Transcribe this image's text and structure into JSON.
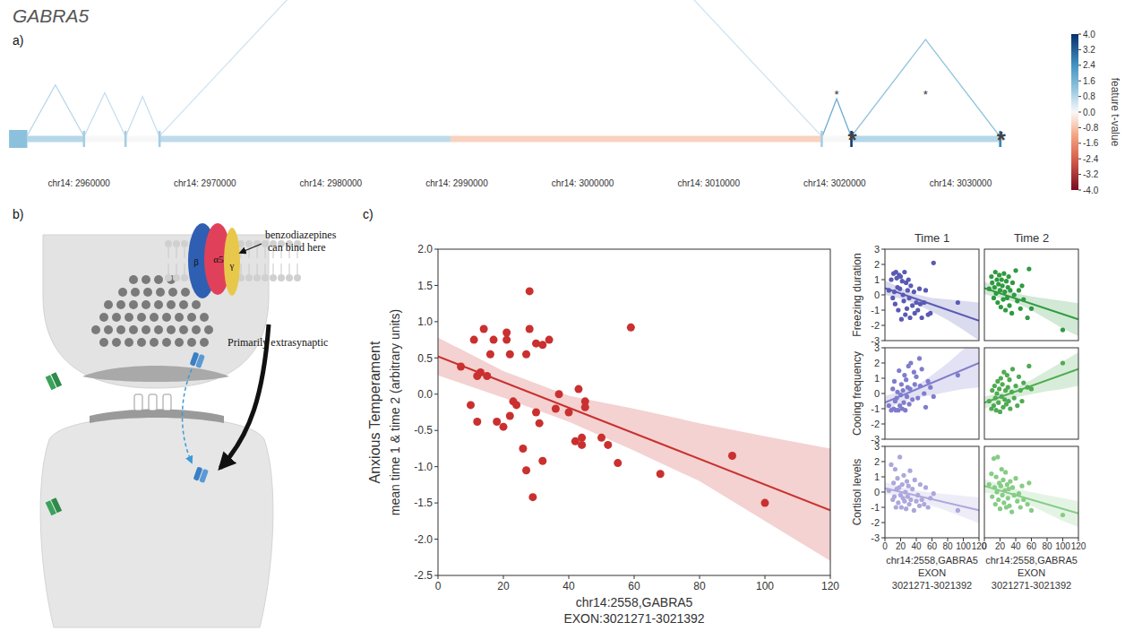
{
  "figure": {
    "title": "GABRA5",
    "panel_labels": [
      "a)",
      "b)",
      "c)"
    ]
  },
  "gene_track": {
    "xlim": [
      2954300,
      3033950
    ],
    "xticks": [
      {
        "value": 2960000,
        "label": "chr14: 2960000"
      },
      {
        "value": 2970000,
        "label": "chr14: 2970000"
      },
      {
        "value": 2980000,
        "label": "chr14: 2980000"
      },
      {
        "value": 2990000,
        "label": "chr14: 2990000"
      },
      {
        "value": 3000000,
        "label": "chr14: 3000000"
      },
      {
        "value": 3010000,
        "label": "chr14: 3010000"
      },
      {
        "value": 3020000,
        "label": "chr14: 3020000"
      },
      {
        "value": 3030000,
        "label": "chr14: 3030000"
      }
    ],
    "exons": [
      {
        "start": 2954450,
        "end": 2955900,
        "t": 1.3
      },
      {
        "start": 2960350,
        "end": 2960450,
        "t": 1.0
      },
      {
        "start": 2963650,
        "end": 2963750,
        "t": 1.0
      },
      {
        "start": 2966350,
        "end": 2966450,
        "t": 1.0
      },
      {
        "start": 3018900,
        "end": 3019050,
        "t": 1.0
      },
      {
        "start": 3021271,
        "end": 3021392,
        "t": 3.8,
        "label": "*"
      },
      {
        "start": 3033050,
        "end": 3033250,
        "t": 2.6,
        "label": "*"
      }
    ],
    "introns": [
      {
        "start": 2955900,
        "end": 2960350,
        "t": 0.8
      },
      {
        "start": 2960450,
        "end": 2963650,
        "t": 0.0
      },
      {
        "start": 2963750,
        "end": 2966350,
        "t": 0.0
      },
      {
        "start": 2966450,
        "end": 2989500,
        "t": 0.7
      },
      {
        "start": 2989500,
        "end": 3018900,
        "t": -0.6
      },
      {
        "start": 3019050,
        "end": 3021271,
        "t": 0.0
      },
      {
        "start": 3021392,
        "end": 3033050,
        "t": 0.8
      }
    ],
    "junctions": [
      {
        "start": 2955900,
        "end": 2960350,
        "t": 0.8
      },
      {
        "start": 2960450,
        "end": 2963650,
        "t": 0.6
      },
      {
        "start": 2963750,
        "end": 2966350,
        "t": 0.6
      },
      {
        "start": 2966450,
        "end": 3018900,
        "t": 0.5
      },
      {
        "start": 3019050,
        "end": 3021271,
        "t": 1.8,
        "label": "*"
      },
      {
        "start": 3021392,
        "end": 3033050,
        "t": 1.2,
        "label": "*"
      }
    ],
    "colorbar": {
      "range": [
        -4,
        4
      ],
      "ticks": [
        {
          "value": 4,
          "label": "4.0"
        },
        3.2,
        2.4,
        1.6,
        0.8,
        {
          "value": 0,
          "label": "0.0"
        },
        -0.8,
        -1.6,
        -2.4,
        -3.2,
        {
          "value": -4,
          "label": "-4.0"
        }
      ],
      "label": "feature t-value"
    }
  },
  "diagram": {
    "subunits": [
      "β",
      "α5",
      "γ"
    ],
    "labels": [
      "benzodiazepines can bind here",
      "Primarily extrasynaptic"
    ]
  },
  "chart_data": [
    {
      "type": "scatter",
      "x_label": [
        "chr14:2558,GABRA5",
        "EXON:3021271-3021392"
      ],
      "y_label": [
        "Anxious Temperament",
        "mean time 1 & time 2 (arbitrary units)"
      ],
      "xlim": [
        0,
        120
      ],
      "ylim": [
        -2.5,
        2.0
      ],
      "xticks": [
        0,
        20,
        40,
        60,
        80,
        100,
        120
      ],
      "yticks": [
        -2.5,
        {
          "value": -2,
          "label": "-2.0"
        },
        -1.5,
        {
          "value": -1,
          "label": "-1.0"
        },
        -0.5,
        {
          "value": 0,
          "label": "0.0"
        },
        0.5,
        {
          "value": 1,
          "label": "1.0"
        },
        1.5,
        {
          "value": 2,
          "label": "2.0"
        }
      ],
      "color": "#c9302f",
      "x": [
        7,
        10,
        11,
        12,
        12,
        13,
        14,
        15,
        16,
        17,
        18,
        20,
        21,
        21,
        22,
        22,
        23,
        24,
        26,
        27,
        27,
        28,
        28,
        29,
        30,
        30,
        31,
        32,
        32,
        34,
        36,
        37,
        40,
        42,
        43,
        44,
        44,
        45,
        45,
        50,
        52,
        55,
        59,
        68,
        90,
        100
      ],
      "values": [
        0.38,
        -0.15,
        0.75,
        0.25,
        -0.38,
        0.3,
        0.9,
        0.25,
        0.55,
        0.75,
        -0.38,
        -0.45,
        0.85,
        0.75,
        -0.3,
        0.55,
        -0.1,
        -0.15,
        -0.75,
        0.55,
        -1.05,
        0.9,
        1.42,
        -1.42,
        0.7,
        -0.25,
        -0.4,
        0.68,
        -0.92,
        0.75,
        -0.2,
        0.0,
        -0.25,
        -0.65,
        0.07,
        -0.6,
        -0.7,
        -0.1,
        -0.18,
        -0.6,
        -0.7,
        -0.95,
        0.92,
        -1.1,
        -0.85,
        -1.5
      ],
      "fit": {
        "x": [
          0,
          120
        ],
        "values": [
          0.52,
          -1.6
        ]
      },
      "band": {
        "x": [
          0,
          20,
          40,
          60,
          80,
          100,
          120
        ],
        "upper": [
          0.78,
          0.32,
          -0.02,
          -0.2,
          -0.4,
          -0.58,
          -0.75
        ],
        "lower": [
          0.26,
          -0.05,
          -0.38,
          -0.78,
          -1.2,
          -1.75,
          -2.3
        ]
      }
    },
    {
      "type": "scatter",
      "rows": [
        "Freezing duration",
        "Cooing frequency",
        "Cortisol levels"
      ],
      "columns": [
        "Time 1",
        "Time 2"
      ],
      "x_label": [
        "chr14:2558,GABRA5",
        "EXON",
        "3021271-3021392"
      ],
      "xlim": [
        0,
        120
      ],
      "ylim": [
        -3,
        3
      ],
      "xticks": [
        0,
        20,
        40,
        60,
        80,
        100,
        120
      ],
      "yticks": [
        -3,
        -2,
        -1,
        0,
        1,
        2,
        3
      ],
      "panels": [
        {
          "color": "#5a5ab4",
          "x": [
            5,
            8,
            10,
            11,
            12,
            13,
            14,
            15,
            16,
            17,
            18,
            19,
            20,
            21,
            22,
            23,
            24,
            25,
            26,
            27,
            28,
            29,
            30,
            31,
            32,
            33,
            35,
            37,
            38,
            40,
            42,
            44,
            45,
            47,
            50,
            52,
            55,
            58,
            62,
            93
          ],
          "values": [
            0.3,
            1.0,
            -0.2,
            1.4,
            0.2,
            -0.6,
            1.5,
            1.1,
            0.5,
            -1.0,
            1.3,
            0.4,
            1.2,
            -1.6,
            0.9,
            0.0,
            -0.4,
            1.5,
            -1.3,
            0.8,
            -0.9,
            0.3,
            1.0,
            -0.2,
            -1.5,
            0.6,
            -0.7,
            0.2,
            -1.2,
            -0.5,
            -1.0,
            0.4,
            -0.6,
            -1.5,
            -0.5,
            0.3,
            -1.3,
            -1.2,
            2.1,
            -0.5
          ],
          "fit": {
            "x": [
              0,
              120
            ],
            "values": [
              0.45,
              -1.7
            ]
          },
          "band": {
            "x": [
              0,
              20,
              40,
              60,
              80,
              100,
              120
            ],
            "upper": [
              0.95,
              0.45,
              0.05,
              -0.2,
              -0.3,
              -0.4,
              -0.5
            ],
            "lower": [
              0.0,
              -0.25,
              -0.6,
              -1.1,
              -1.65,
              -2.3,
              -3.0
            ]
          }
        },
        {
          "color": "#2f9a40",
          "x": [
            6,
            9,
            10,
            12,
            13,
            14,
            15,
            16,
            17,
            18,
            19,
            20,
            21,
            22,
            23,
            24,
            25,
            26,
            27,
            28,
            29,
            30,
            31,
            32,
            33,
            35,
            36,
            38,
            40,
            42,
            44,
            46,
            48,
            50,
            55,
            57,
            60,
            100
          ],
          "values": [
            0.4,
            1.2,
            0.8,
            -0.2,
            0.5,
            1.5,
            0.1,
            1.0,
            -0.5,
            0.7,
            1.3,
            0.3,
            -0.8,
            1.0,
            0.6,
            -0.3,
            1.4,
            0.2,
            -1.0,
            0.9,
            -0.2,
            0.5,
            1.2,
            -0.7,
            0.3,
            -1.2,
            0.8,
            0.0,
            1.6,
            -0.4,
            0.3,
            -0.9,
            0.6,
            -0.3,
            -1.5,
            1.7,
            -0.9,
            -2.3
          ],
          "fit": {
            "x": [
              0,
              120
            ],
            "values": [
              0.45,
              -1.6
            ]
          },
          "band": {
            "x": [
              0,
              20,
              40,
              60,
              80,
              100,
              120
            ],
            "upper": [
              0.85,
              0.45,
              0.1,
              -0.1,
              -0.25,
              -0.4,
              -0.55
            ],
            "lower": [
              0.05,
              -0.2,
              -0.5,
              -1.0,
              -1.6,
              -2.2,
              -2.7
            ]
          }
        },
        {
          "color": "#807dcc",
          "x": [
            5,
            8,
            10,
            11,
            12,
            13,
            14,
            15,
            16,
            17,
            18,
            19,
            20,
            21,
            22,
            23,
            24,
            25,
            26,
            27,
            28,
            29,
            30,
            31,
            32,
            33,
            35,
            37,
            38,
            40,
            42,
            44,
            45,
            47,
            50,
            52,
            55,
            58,
            62,
            93
          ],
          "values": [
            -0.8,
            -1.1,
            0.3,
            -1.0,
            0.8,
            -0.5,
            -1.1,
            -0.3,
            0.1,
            -1.1,
            1.5,
            -0.8,
            -0.1,
            0.6,
            -1.0,
            0.2,
            -0.6,
            1.2,
            -1.1,
            0.9,
            -0.2,
            0.4,
            1.8,
            -0.7,
            0.3,
            2.0,
            -0.4,
            1.4,
            0.6,
            1.1,
            -0.3,
            2.3,
            0.5,
            1.6,
            0.0,
            -0.9,
            0.8,
            0.4,
            -0.2,
            1.2
          ],
          "fit": {
            "x": [
              0,
              120
            ],
            "values": [
              -0.6,
              2.0
            ]
          },
          "band": {
            "x": [
              0,
              20,
              40,
              60,
              80,
              100,
              120
            ],
            "upper": [
              -0.15,
              0.1,
              0.5,
              1.2,
              2.0,
              2.9,
              3.8
            ],
            "lower": [
              -1.05,
              -0.6,
              -0.3,
              -0.1,
              0.1,
              0.3,
              0.4
            ]
          }
        },
        {
          "color": "#4fab52",
          "x": [
            6,
            9,
            10,
            12,
            13,
            14,
            15,
            16,
            17,
            18,
            19,
            20,
            21,
            22,
            23,
            24,
            25,
            26,
            27,
            28,
            29,
            30,
            31,
            32,
            33,
            35,
            36,
            38,
            40,
            42,
            44,
            46,
            48,
            50,
            55,
            57,
            60,
            100
          ],
          "values": [
            -0.5,
            -1.0,
            0.2,
            -0.8,
            0.5,
            -0.3,
            -1.1,
            0.0,
            0.8,
            -0.6,
            0.3,
            -1.2,
            1.0,
            -0.2,
            0.6,
            -0.9,
            1.4,
            -0.4,
            0.2,
            -0.7,
            1.2,
            0.4,
            -0.5,
            0.9,
            -1.0,
            0.1,
            1.6,
            -0.3,
            0.5,
            -0.8,
            1.1,
            0.2,
            -0.5,
            0.7,
            0.4,
            1.8,
            0.3,
            2.0
          ],
          "fit": {
            "x": [
              0,
              120
            ],
            "values": [
              -0.6,
              1.6
            ]
          },
          "band": {
            "x": [
              0,
              20,
              40,
              60,
              80,
              100,
              120
            ],
            "upper": [
              -0.2,
              0.05,
              0.4,
              0.9,
              1.5,
              2.1,
              2.7
            ],
            "lower": [
              -1.0,
              -0.55,
              -0.25,
              -0.05,
              0.15,
              0.3,
              0.5
            ]
          }
        },
        {
          "color": "#aca7dc",
          "x": [
            5,
            8,
            10,
            11,
            12,
            13,
            14,
            15,
            16,
            17,
            18,
            19,
            20,
            21,
            22,
            23,
            24,
            25,
            26,
            27,
            28,
            29,
            30,
            31,
            32,
            33,
            35,
            37,
            38,
            40,
            42,
            44,
            45,
            47,
            50,
            52,
            55,
            58,
            62,
            93
          ],
          "values": [
            0.1,
            1.8,
            -0.5,
            0.6,
            -0.3,
            1.5,
            -1.0,
            0.2,
            0.9,
            -0.7,
            0.3,
            2.3,
            -0.2,
            -1.0,
            0.5,
            -0.4,
            1.1,
            -0.6,
            0.0,
            -1.1,
            0.7,
            -0.3,
            0.4,
            -0.8,
            1.4,
            -0.5,
            0.2,
            -1.2,
            0.8,
            -0.6,
            -0.2,
            -0.9,
            0.5,
            -0.5,
            -0.8,
            0.3,
            -1.0,
            -0.4,
            -0.1,
            -1.2
          ],
          "fit": {
            "x": [
              0,
              120
            ],
            "values": [
              0.25,
              -1.2
            ]
          },
          "band": {
            "x": [
              0,
              20,
              40,
              60,
              80,
              100,
              120
            ],
            "upper": [
              0.65,
              0.35,
              0.1,
              -0.05,
              -0.15,
              -0.25,
              -0.35
            ],
            "lower": [
              -0.15,
              -0.25,
              -0.5,
              -0.9,
              -1.25,
              -1.65,
              -2.05
            ]
          }
        },
        {
          "color": "#86cc86",
          "x": [
            6,
            9,
            10,
            12,
            13,
            14,
            15,
            16,
            17,
            18,
            19,
            20,
            21,
            22,
            23,
            24,
            25,
            26,
            27,
            28,
            29,
            30,
            31,
            32,
            33,
            35,
            36,
            38,
            40,
            42,
            44,
            46,
            48,
            50,
            55,
            57,
            60,
            100
          ],
          "values": [
            0.5,
            1.2,
            -0.3,
            2.2,
            0.3,
            -0.8,
            1.0,
            0.0,
            2.3,
            -0.5,
            0.6,
            -1.1,
            0.4,
            1.5,
            -0.2,
            0.8,
            -0.7,
            0.1,
            1.3,
            -1.0,
            0.5,
            -0.4,
            0.2,
            -0.9,
            0.7,
            -1.3,
            0.3,
            -0.2,
            0.9,
            -0.6,
            -0.1,
            -1.0,
            0.4,
            -0.5,
            -0.8,
            0.6,
            -1.2,
            -1.5
          ],
          "fit": {
            "x": [
              0,
              120
            ],
            "values": [
              0.4,
              -1.4
            ]
          },
          "band": {
            "x": [
              0,
              20,
              40,
              60,
              80,
              100,
              120
            ],
            "upper": [
              0.85,
              0.5,
              0.2,
              0.0,
              -0.2,
              -0.4,
              -0.6
            ],
            "lower": [
              -0.05,
              -0.15,
              -0.45,
              -0.9,
              -1.4,
              -1.9,
              -2.3
            ]
          }
        }
      ]
    }
  ]
}
